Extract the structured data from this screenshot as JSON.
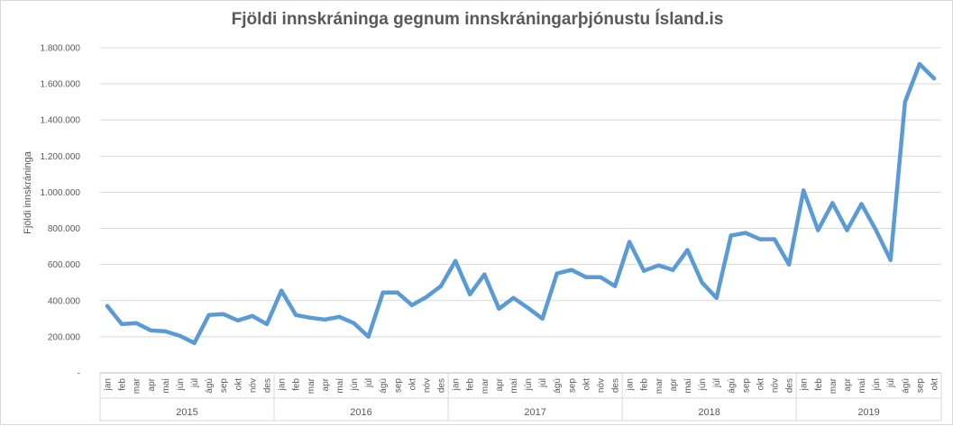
{
  "chart_data": {
    "type": "line",
    "title": "Fjöldi innskráninga  gegnum innskráningarþjónustu  Ísland.is",
    "ylabel": "Fjöldi innskráninga",
    "xlabel": "",
    "ylim": [
      0,
      1800000
    ],
    "yticks": [
      0,
      200000,
      400000,
      600000,
      800000,
      1000000,
      1200000,
      1400000,
      1600000,
      1800000
    ],
    "ytick_labels": [
      "-",
      "200.000",
      "400.000",
      "600.000",
      "800.000",
      "1.000.000",
      "1.200.000",
      "1.400.000",
      "1.600.000",
      "1.800.000"
    ],
    "grid": true,
    "legend": "none",
    "color": "#5b9bd5",
    "years": [
      {
        "label": "2015",
        "months": 12
      },
      {
        "label": "2016",
        "months": 12
      },
      {
        "label": "2017",
        "months": 12
      },
      {
        "label": "2018",
        "months": 12
      },
      {
        "label": "2019",
        "months": 10
      }
    ],
    "categories": [
      "jan",
      "feb",
      "mar",
      "apr",
      "maí",
      "jún",
      "júl",
      "ágú",
      "sep",
      "okt",
      "nóv",
      "des",
      "jan",
      "feb",
      "mar",
      "apr",
      "maí",
      "jún",
      "júl",
      "ágú",
      "sep",
      "okt",
      "nóv",
      "des",
      "jan",
      "feb",
      "mar",
      "apr",
      "maí",
      "jún",
      "júl",
      "ágú",
      "sep",
      "okt",
      "nóv",
      "des",
      "jan",
      "feb",
      "mar",
      "apr",
      "maí",
      "jún",
      "júl",
      "ágú",
      "sep",
      "okt",
      "nóv",
      "des",
      "jan",
      "feb",
      "mar",
      "apr",
      "maí",
      "jún",
      "júl",
      "ágú",
      "sep",
      "okt"
    ],
    "series": [
      {
        "values": [
          370000,
          270000,
          275000,
          235000,
          230000,
          205000,
          165000,
          320000,
          325000,
          290000,
          315000,
          270000,
          455000,
          320000,
          305000,
          295000,
          310000,
          275000,
          200000,
          445000,
          445000,
          375000,
          420000,
          480000,
          620000,
          435000,
          545000,
          355000,
          415000,
          360000,
          300000,
          550000,
          570000,
          530000,
          530000,
          480000,
          725000,
          565000,
          595000,
          570000,
          680000,
          500000,
          415000,
          760000,
          775000,
          740000,
          740000,
          600000,
          1010000,
          790000,
          940000,
          790000,
          935000,
          790000,
          625000,
          1500000,
          1710000,
          1630000
        ]
      }
    ]
  }
}
